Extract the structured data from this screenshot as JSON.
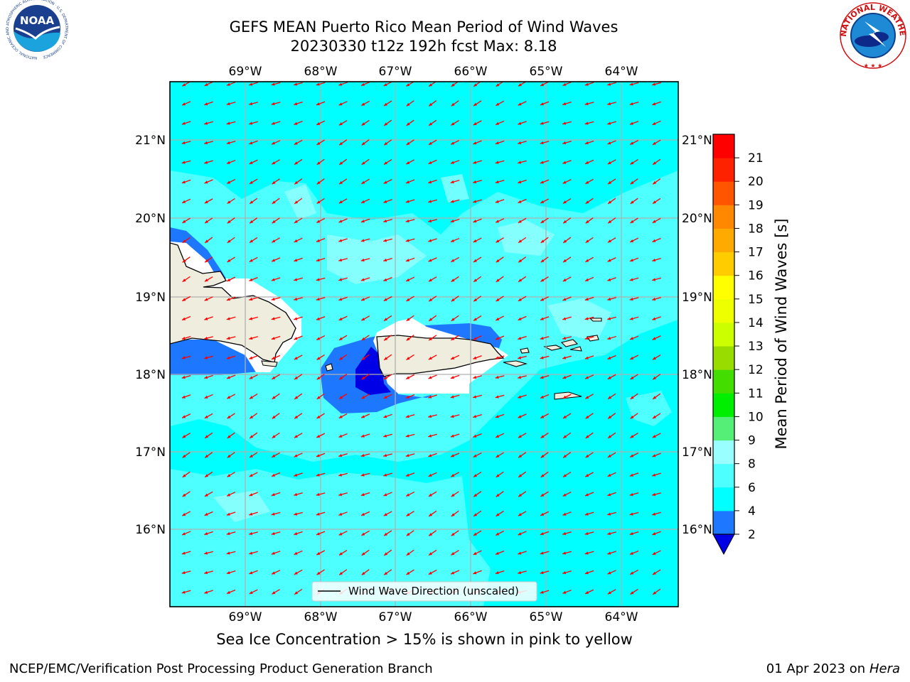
{
  "title": {
    "line1": "GEFS MEAN Puerto Rico Mean Period of Wind Waves",
    "line2": "20230330 t12z 192h fcst   Max: 8.18"
  },
  "map": {
    "lon_labels": [
      "69°W",
      "68°W",
      "67°W",
      "66°W",
      "65°W",
      "64°W"
    ],
    "lat_labels": [
      "21°N",
      "20°N",
      "19°N",
      "18°N",
      "17°N",
      "16°N"
    ],
    "legend_label": "Wind Wave Direction (unscaled)",
    "land_color": "#efedde",
    "coast_color": "#000000",
    "arrow_color": "#ff0000",
    "grid_color": "#b0b0b0"
  },
  "colorbar": {
    "label": "Mean Period of Wind Waves [s]",
    "ticks": [
      "2",
      "4",
      "6",
      "8",
      "9",
      "10",
      "11",
      "12",
      "13",
      "14",
      "15",
      "16",
      "17",
      "18",
      "19",
      "20",
      "21"
    ],
    "colors": [
      "#1e78ff",
      "#00ffff",
      "#4dffff",
      "#99ffff",
      "#55ee77",
      "#00ee00",
      "#44dd00",
      "#99dd00",
      "#ccff00",
      "#eeff00",
      "#ffff00",
      "#ffcc00",
      "#ffaa00",
      "#ff8800",
      "#ff5500",
      "#ff2200",
      "#ff0000"
    ],
    "under_color": "#0000e6"
  },
  "note": "Sea Ice Concentration > 15% is shown in pink to yellow",
  "footer": {
    "left": "NCEP/EMC/Verification Post Processing Product Generation Branch",
    "date": "01 Apr 2023 on",
    "machine": "Hera"
  },
  "logos": {
    "noaa": "NOAA",
    "noaa_ring": "NATIONAL OCEANIC AND ATMOSPHERIC ADMINISTRATION · U.S. DEPARTMENT OF COMMERCE",
    "nws_ring": "NATIONAL WEATHER SERVICE"
  }
}
